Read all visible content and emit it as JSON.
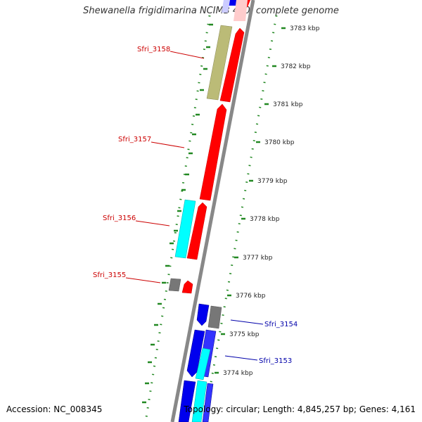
{
  "title": "Shewanella frigidimarina NCIMB 400, complete genome",
  "footer": {
    "accession": "Accession: NC_008345",
    "topology": "Topology: circular; Length: 4,845,257 bp; Genes: 4,161"
  },
  "colors": {
    "forward_cds": "#ff0000",
    "reverse_cds": "#0000ee",
    "rna": "#00ffff",
    "other": "#888888",
    "hit": "#bbbb77",
    "tick": "#228822",
    "backbone": "#888888",
    "forward_label": "#cc0000",
    "reverse_label": "#0000aa"
  },
  "ticks": [
    {
      "label": "3783 kbp"
    },
    {
      "label": "3782 kbp"
    },
    {
      "label": "3781 kbp"
    },
    {
      "label": "3780 kbp"
    },
    {
      "label": "3779 kbp"
    },
    {
      "label": "3778 kbp"
    },
    {
      "label": "3777 kbp"
    },
    {
      "label": "3776 kbp"
    },
    {
      "label": "3775 kbp"
    },
    {
      "label": "3774 kbp"
    }
  ],
  "genes": [
    {
      "name": "Sfri_3158",
      "strand": "forward"
    },
    {
      "name": "Sfri_3157",
      "strand": "forward"
    },
    {
      "name": "Sfri_3156",
      "strand": "forward"
    },
    {
      "name": "Sfri_3155",
      "strand": "forward"
    },
    {
      "name": "Sfri_3154",
      "strand": "reverse"
    },
    {
      "name": "Sfri_3153",
      "strand": "reverse"
    }
  ]
}
